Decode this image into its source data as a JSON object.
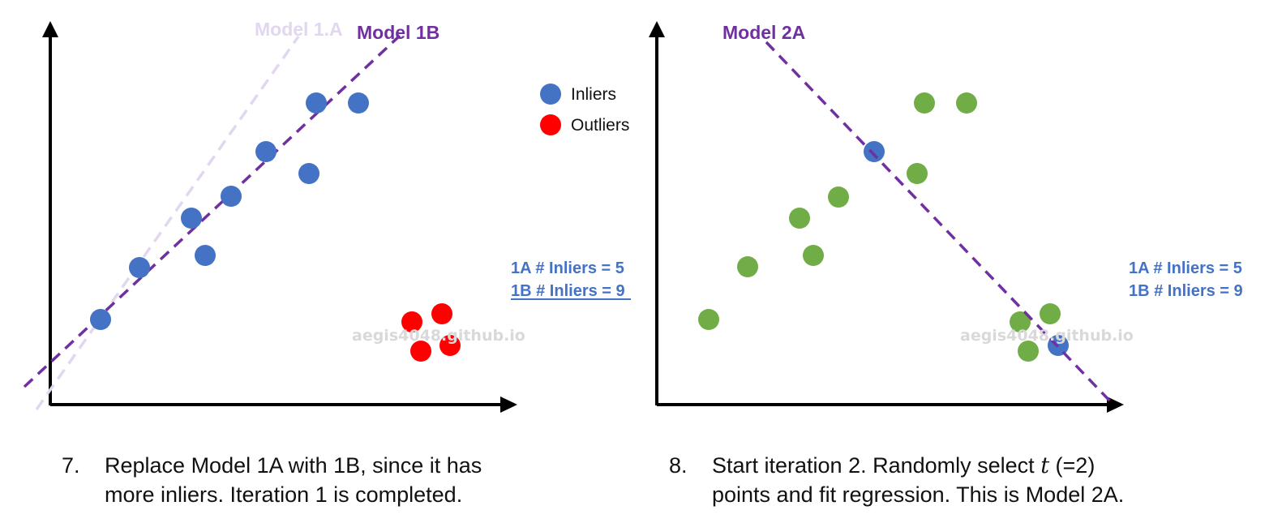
{
  "colors": {
    "inlier": "#4472c4",
    "outlier": "#ff0000",
    "candidate": "#70ad47",
    "model": "#7030a0",
    "model_faded": "#e2d7ef",
    "count_text": "#4472c4",
    "watermark": "#d9d9d9"
  },
  "legend": {
    "inliers_label": "Inliers",
    "outliers_label": "Outliers"
  },
  "watermark": "aegis4048.github.io",
  "panel1": {
    "model_a_label": "Model 1.A",
    "model_b_label": "Model 1B",
    "count_1a": "1A # Inliers = 5",
    "count_1b": "1B # Inliers = 9",
    "caption_number": "7.",
    "caption_line1": "Replace Model 1A with 1B, since it has",
    "caption_line2": "more inliers. Iteration 1 is completed."
  },
  "panel2": {
    "model_label": "Model 2A",
    "count_1a": "1A # Inliers = 5",
    "count_1b": "1B # Inliers = 9",
    "caption_number": "8.",
    "caption_line1_pre": "Start iteration 2. Randomly select ",
    "caption_var": "t",
    "caption_line1_post": " (=2)",
    "caption_line2": "points and fit regression. This is Model 2A."
  }
}
